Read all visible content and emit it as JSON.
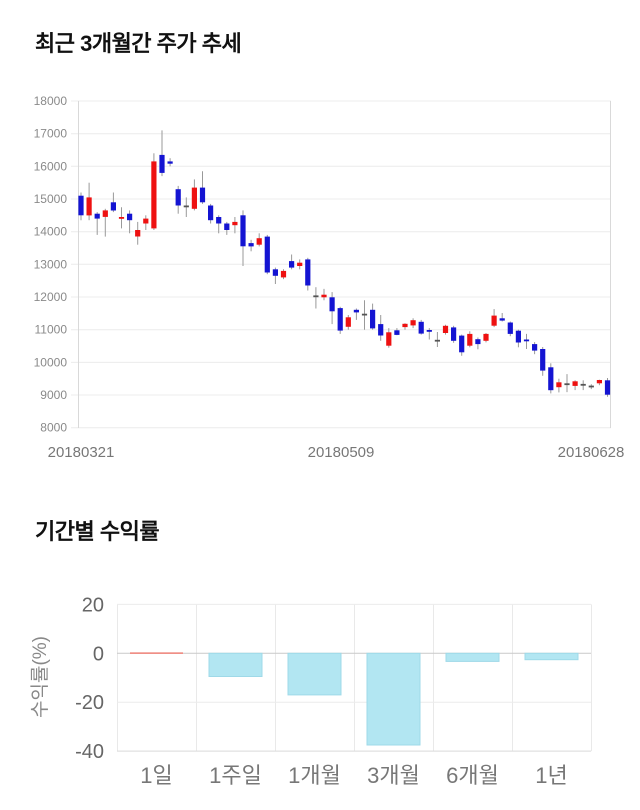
{
  "page": {
    "background": "#ffffff"
  },
  "price_chart": {
    "title": "최근 3개월간 주가 추세"
  },
  "return_chart": {
    "title": "기간별 수익률"
  },
  "chart_data": [
    {
      "type": "candlestick",
      "title": "최근 3개월간 주가 추세",
      "ylim": [
        8000,
        18000
      ],
      "y_ticks": [
        18000,
        17000,
        16000,
        15000,
        14000,
        13000,
        12000,
        11000,
        10000,
        9000,
        8000
      ],
      "x_tick_labels": [
        "20180321",
        "20180509",
        "20180628"
      ],
      "grid": true,
      "up_color": "#ee1111",
      "down_color": "#1414d2",
      "doji_color": "#555555",
      "wick_color": "#999999",
      "ohlc": [
        [
          15100,
          15200,
          14350,
          14500
        ],
        [
          14500,
          15500,
          14350,
          15050
        ],
        [
          14550,
          14600,
          13900,
          14400
        ],
        [
          14450,
          14700,
          13850,
          14650
        ],
        [
          14900,
          15200,
          14600,
          14650
        ],
        [
          14400,
          14750,
          14100,
          14450
        ],
        [
          14550,
          14650,
          13950,
          14350
        ],
        [
          13850,
          14300,
          13600,
          14050
        ],
        [
          14250,
          14500,
          14050,
          14400
        ],
        [
          14100,
          16400,
          14050,
          16150
        ],
        [
          16350,
          17100,
          15700,
          15800
        ],
        [
          16150,
          16250,
          16000,
          16080
        ],
        [
          15300,
          15400,
          14550,
          14800
        ],
        [
          14800,
          15050,
          14450,
          14800
        ],
        [
          14700,
          15600,
          14650,
          15350
        ],
        [
          15350,
          15850,
          14850,
          14900
        ],
        [
          14800,
          14850,
          14250,
          14350
        ],
        [
          14450,
          14500,
          13950,
          14250
        ],
        [
          14250,
          14300,
          13900,
          14050
        ],
        [
          14200,
          14450,
          13950,
          14300
        ],
        [
          14500,
          14650,
          12950,
          13550
        ],
        [
          13650,
          13750,
          13400,
          13550
        ],
        [
          13600,
          13950,
          13550,
          13800
        ],
        [
          13850,
          13900,
          12700,
          12750
        ],
        [
          12850,
          12900,
          12400,
          12650
        ],
        [
          12600,
          12850,
          12550,
          12800
        ],
        [
          13100,
          13300,
          12850,
          12900
        ],
        [
          12950,
          13150,
          12850,
          13050
        ],
        [
          13150,
          13200,
          12200,
          12350
        ],
        [
          12050,
          12300,
          11650,
          12050
        ],
        [
          11990,
          12250,
          11900,
          12070
        ],
        [
          11990,
          12150,
          11170,
          11560
        ],
        [
          11660,
          11700,
          10870,
          10970
        ],
        [
          11090,
          11450,
          11000,
          11380
        ],
        [
          11610,
          11650,
          11300,
          11530
        ],
        [
          11490,
          11900,
          11000,
          11490
        ],
        [
          11610,
          11800,
          11000,
          11040
        ],
        [
          11170,
          11450,
          10660,
          10820
        ],
        [
          10510,
          11050,
          10450,
          10920
        ],
        [
          10980,
          11050,
          10830,
          10840
        ],
        [
          11080,
          11200,
          11000,
          11180
        ],
        [
          11130,
          11350,
          11050,
          11290
        ],
        [
          11240,
          11300,
          10850,
          10880
        ],
        [
          10990,
          11050,
          10700,
          10940
        ],
        [
          10690,
          10930,
          10470,
          10690
        ],
        [
          10900,
          11150,
          10850,
          11120
        ],
        [
          11070,
          11120,
          10600,
          10660
        ],
        [
          10820,
          10850,
          10200,
          10310
        ],
        [
          10510,
          10950,
          10460,
          10870
        ],
        [
          10710,
          10760,
          10400,
          10560
        ],
        [
          10660,
          10900,
          10610,
          10870
        ],
        [
          11120,
          11630,
          11080,
          11430
        ],
        [
          11350,
          11510,
          11250,
          11280
        ],
        [
          11220,
          11250,
          10800,
          10870
        ],
        [
          10970,
          11000,
          10460,
          10610
        ],
        [
          10700,
          10870,
          10410,
          10650
        ],
        [
          10560,
          10620,
          10250,
          10360
        ],
        [
          10410,
          10470,
          9590,
          9750
        ],
        [
          9850,
          9970,
          9050,
          9150
        ],
        [
          9240,
          9500,
          9080,
          9390
        ],
        [
          9360,
          9640,
          9090,
          9360
        ],
        [
          9280,
          9450,
          9150,
          9420
        ],
        [
          9340,
          9450,
          9150,
          9340
        ],
        [
          9290,
          9330,
          9180,
          9290
        ],
        [
          9360,
          9470,
          9300,
          9460
        ],
        [
          9450,
          9520,
          8950,
          9010
        ]
      ]
    },
    {
      "type": "bar",
      "title": "기간별 수익률",
      "ylabel": "수익률(%)",
      "categories": [
        "1일",
        "1주일",
        "1개월",
        "3개월",
        "6개월",
        "1년"
      ],
      "values": [
        0,
        -9.5,
        -17,
        -37.5,
        -3.3,
        -2.6
      ],
      "ylim": [
        -40,
        20
      ],
      "y_ticks": [
        20,
        0,
        -20,
        -40
      ],
      "grid": true,
      "bar_color": "#b2e6f2",
      "bar_border_color": "#9fd9e8",
      "zero_bar_color": "#ef8f86"
    }
  ]
}
